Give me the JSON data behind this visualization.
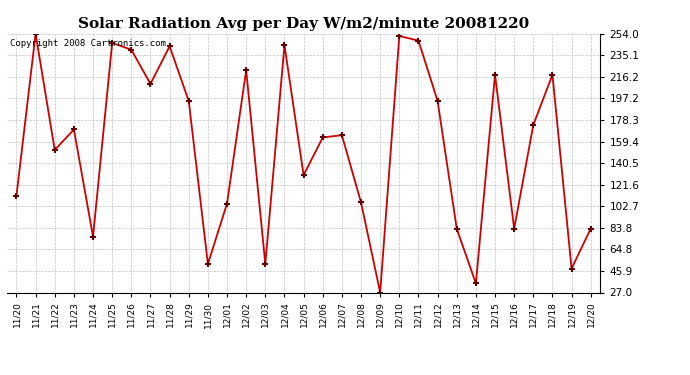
{
  "title": "Solar Radiation Avg per Day W/m2/minute 20081220",
  "copyright": "Copyright 2008 Cartronics.com",
  "labels": [
    "11/20",
    "11/21",
    "11/22",
    "11/23",
    "11/24",
    "11/25",
    "11/26",
    "11/27",
    "11/28",
    "11/29",
    "11/30",
    "12/01",
    "12/02",
    "12/03",
    "12/04",
    "12/05",
    "12/06",
    "12/07",
    "12/08",
    "12/09",
    "12/10",
    "12/11",
    "12/12",
    "12/13",
    "12/14",
    "12/15",
    "12/16",
    "12/17",
    "12/18",
    "12/19",
    "12/20"
  ],
  "values": [
    112,
    254,
    152,
    170,
    76,
    246,
    240,
    210,
    243,
    195,
    52,
    105,
    222,
    52,
    244,
    130,
    163,
    165,
    106,
    27,
    252,
    248,
    195,
    83,
    35,
    218,
    83,
    174,
    218,
    48,
    83
  ],
  "yticks": [
    27.0,
    45.9,
    64.8,
    83.8,
    102.7,
    121.6,
    140.5,
    159.4,
    178.3,
    197.2,
    216.2,
    235.1,
    254.0
  ],
  "ymin": 27.0,
  "ymax": 254.0,
  "line_color": "#cc0000",
  "marker_color": "#660000",
  "bg_color": "#ffffff",
  "grid_color": "#aaaaaa",
  "title_fontsize": 11,
  "copyright_fontsize": 6.5,
  "tick_fontsize": 6.5,
  "ytick_fontsize": 7.5
}
